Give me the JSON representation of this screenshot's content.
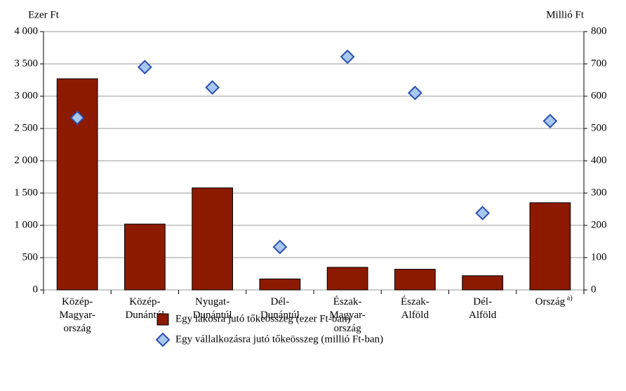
{
  "chart_data": {
    "type": "bar",
    "y_axis_title": "Ezer Ft",
    "y2_axis_title": "Millió Ft",
    "categories": [
      "Közép-\nMagyar-\nország",
      "Közép-\nDunántúl",
      "Nyugat-\nDunántúl",
      "Dél-\nDunántúl",
      "Észak-\nMagyar-\nország",
      "Észak-\nAlföld",
      "Dél-\nAlföld",
      "Ország"
    ],
    "annotations": [
      {
        "text": "a)"
      }
    ],
    "series": [
      {
        "name": "Egy lakosra jutó tőkeösszeg (ezer Ft-ban)",
        "type": "bar",
        "color": "#8b1a00",
        "values": [
          3270,
          1020,
          1580,
          170,
          350,
          320,
          220,
          1350
        ]
      },
      {
        "name": "Egy vállalkozásra jutó tőkeösszeg (millió Ft-ban)",
        "type": "scatter",
        "axis": "y2",
        "color": "#a9c8f0",
        "values": [
          533,
          690,
          627,
          133,
          722,
          610,
          238,
          523
        ]
      }
    ],
    "ylim": [
      0,
      4000
    ],
    "yticks": [
      0,
      500,
      {
        "value": 1000,
        "label": "1 000"
      },
      {
        "value": 1500,
        "label": "1 500"
      },
      {
        "value": 2000,
        "label": "2 000"
      },
      {
        "value": 2500,
        "label": "2 500"
      },
      {
        "value": 3000,
        "label": "3 000"
      },
      {
        "value": 3500,
        "label": "3 500"
      },
      {
        "value": 4000,
        "label": "4 000"
      }
    ],
    "y2lim": [
      0,
      800
    ],
    "y2ticks": [
      0,
      100,
      200,
      300,
      400,
      500,
      600,
      700,
      800
    ],
    "grid": true,
    "legend": "bottom"
  }
}
